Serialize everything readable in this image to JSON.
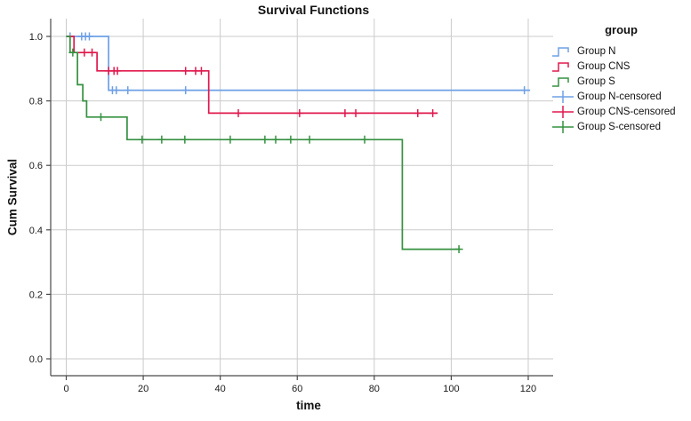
{
  "chart_data": {
    "type": "line",
    "subtype": "kaplan-meier-step",
    "title": "Survival Functions",
    "xlabel": "time",
    "ylabel": "Cum Survival",
    "legend_title": "group",
    "legend_position": "right",
    "grid": true,
    "grid_color": "#cbcbcb",
    "axis_color": "#4a4a4a",
    "xlim": [
      -4,
      126.5
    ],
    "ylim": [
      -0.05,
      1.06
    ],
    "x_ticks": [
      0,
      20,
      40,
      60,
      80,
      100,
      120
    ],
    "y_ticks": [
      {
        "label": "0.0",
        "v": 0.0
      },
      {
        "label": "0.2",
        "v": 0.2
      },
      {
        "label": "0.4",
        "v": 0.4
      },
      {
        "label": "0.6",
        "v": 0.6
      },
      {
        "label": "0.8",
        "v": 0.8
      },
      {
        "label": "1.0",
        "v": 1.0
      }
    ],
    "series": [
      {
        "id": "group-n",
        "name": "Group N",
        "color": "#6ea0e6",
        "points": [
          [
            0,
            1.0
          ],
          [
            11,
            1.0
          ],
          [
            11,
            0.833
          ],
          [
            120.5,
            0.833
          ]
        ],
        "censored": [
          [
            1,
            1.0
          ],
          [
            4,
            1.0
          ],
          [
            5,
            1.0
          ],
          [
            6,
            1.0
          ],
          [
            12,
            0.833
          ],
          [
            13,
            0.833
          ],
          [
            16,
            0.833
          ],
          [
            31,
            0.833
          ],
          [
            119,
            0.833
          ]
        ]
      },
      {
        "id": "group-cns",
        "name": "Group CNS",
        "color": "#e0194e",
        "points": [
          [
            0,
            1.0
          ],
          [
            2,
            1.0
          ],
          [
            2,
            0.95
          ],
          [
            8,
            0.95
          ],
          [
            8,
            0.893
          ],
          [
            37,
            0.893
          ],
          [
            37,
            0.762
          ],
          [
            96.5,
            0.762
          ]
        ],
        "censored": [
          [
            4.7,
            0.95
          ],
          [
            6.7,
            0.95
          ],
          [
            11,
            0.893
          ],
          [
            12.4,
            0.893
          ],
          [
            13.3,
            0.893
          ],
          [
            31,
            0.893
          ],
          [
            33.6,
            0.893
          ],
          [
            35.1,
            0.893
          ],
          [
            44.7,
            0.762
          ],
          [
            60.6,
            0.762
          ],
          [
            72.4,
            0.762
          ],
          [
            75.2,
            0.762
          ],
          [
            91.3,
            0.762
          ],
          [
            95.2,
            0.762
          ]
        ]
      },
      {
        "id": "group-s",
        "name": "Group S",
        "color": "#359140",
        "points": [
          [
            0,
            1.0
          ],
          [
            1,
            1.0
          ],
          [
            1,
            0.95
          ],
          [
            2.9,
            0.95
          ],
          [
            2.9,
            0.85
          ],
          [
            4.3,
            0.85
          ],
          [
            4.3,
            0.8
          ],
          [
            5.3,
            0.8
          ],
          [
            5.3,
            0.75
          ],
          [
            15.8,
            0.75
          ],
          [
            15.8,
            0.68
          ],
          [
            87.3,
            0.68
          ],
          [
            87.3,
            0.34
          ],
          [
            102.4,
            0.34
          ]
        ],
        "censored": [
          [
            1.7,
            0.95
          ],
          [
            9,
            0.75
          ],
          [
            19.7,
            0.68
          ],
          [
            24.8,
            0.68
          ],
          [
            30.8,
            0.68
          ],
          [
            42.6,
            0.68
          ],
          [
            51.6,
            0.68
          ],
          [
            54.4,
            0.68
          ],
          [
            58.3,
            0.68
          ],
          [
            63.2,
            0.68
          ],
          [
            77.5,
            0.68
          ],
          [
            102,
            0.34
          ]
        ]
      }
    ],
    "legend_items": [
      {
        "label": "Group N",
        "color": "#6ea0e6",
        "symbol": "step"
      },
      {
        "label": "Group CNS",
        "color": "#e0194e",
        "symbol": "step"
      },
      {
        "label": "Group S",
        "color": "#359140",
        "symbol": "step"
      },
      {
        "label": "Group N-censored",
        "color": "#6ea0e6",
        "symbol": "plus"
      },
      {
        "label": "Group CNS-censored",
        "color": "#e0194e",
        "symbol": "plus"
      },
      {
        "label": "Group S-censored",
        "color": "#359140",
        "symbol": "plus"
      }
    ]
  }
}
